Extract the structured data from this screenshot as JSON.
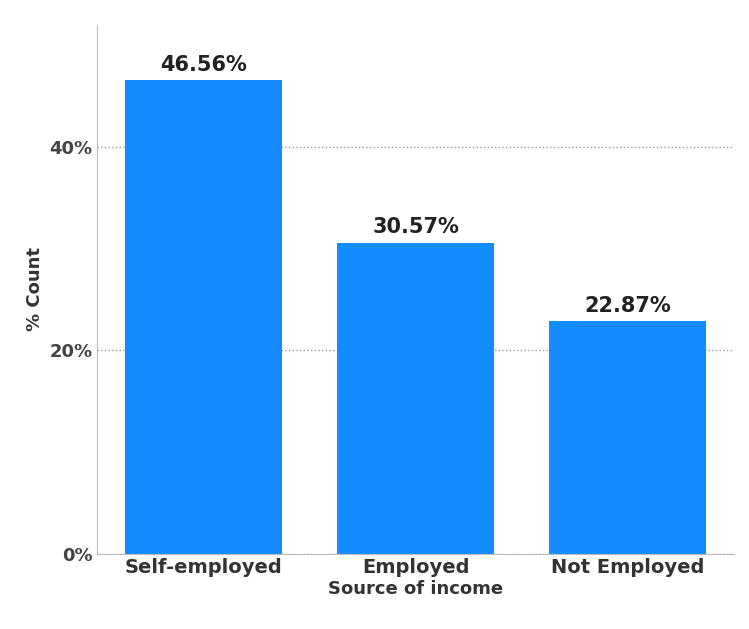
{
  "chart_data": {
    "type": "bar",
    "categories": [
      "Self-employed",
      "Employed",
      "Not Employed"
    ],
    "values": [
      46.56,
      30.57,
      22.87
    ],
    "value_labels": [
      "46.56%",
      "30.57%",
      "22.87%"
    ],
    "data_labels": true,
    "color": "#118dff",
    "x_label": "Source of income",
    "y_label": "% Count",
    "ylim": [
      0,
      52
    ],
    "yticks": [
      {
        "value": 0,
        "label": "0%"
      },
      {
        "value": 20,
        "label": "20%"
      },
      {
        "value": 40,
        "label": "40%"
      }
    ],
    "grid": true
  }
}
